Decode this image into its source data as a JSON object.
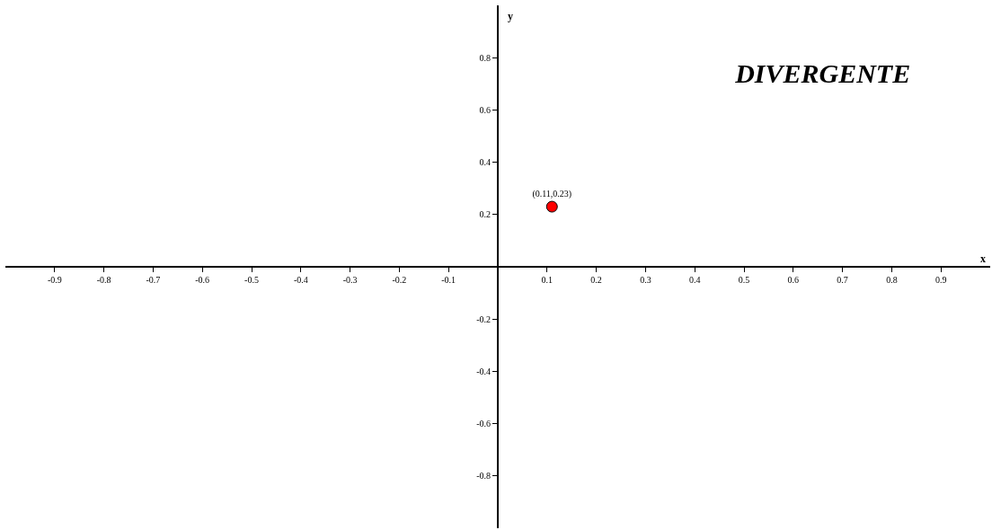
{
  "chart_data": {
    "type": "scatter",
    "title": "DIVERGENTE",
    "xlabel": "x",
    "ylabel": "y",
    "x": [
      0.11
    ],
    "values": [
      0.23
    ],
    "color": "#ff0000",
    "marker": "circle",
    "value_labels": [
      "(0.11,0.23)"
    ],
    "xlim": [
      -1.0,
      1.0
    ],
    "ylim": [
      -1.0,
      1.0
    ],
    "xticks": [
      -0.9,
      -0.8,
      -0.7,
      -0.6,
      -0.5,
      -0.4,
      -0.3,
      -0.2,
      -0.1,
      0.1,
      0.2,
      0.3,
      0.4,
      0.5,
      0.6,
      0.7,
      0.8,
      0.9
    ],
    "yticks": [
      -0.8,
      -0.6,
      -0.4,
      -0.2,
      0.2,
      0.4,
      0.6,
      0.8
    ]
  }
}
